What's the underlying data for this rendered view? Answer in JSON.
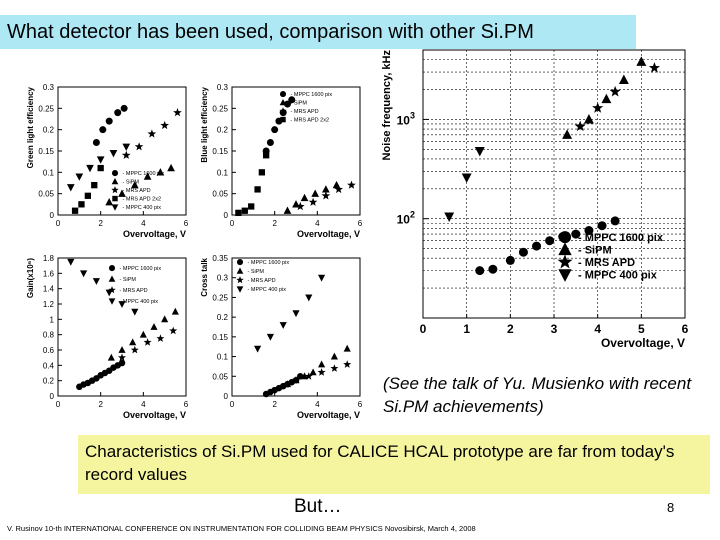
{
  "slide": {
    "title": "What detector has been used, comparison with other Si.PM",
    "caption": "(See the talk of Yu. Musienko with recent Si.PM achievements)",
    "summary": "Characteristics of Si.PM used for CALICE HCAL prototype are far from today's record values",
    "but": "But…",
    "page_number": "8",
    "footer": "V. Rusinov 10-th INTERNATIONAL CONFERENCE ON INSTRUMENTATION FOR COLLIDING BEAM PHYSICS Novosibirsk, March 4, 2008"
  },
  "chart_data": [
    {
      "id": "green",
      "type": "scatter",
      "ylabel": "Green light efficiency",
      "xlabel": "Overvoltage, V",
      "xlim": [
        0,
        6
      ],
      "ylim": [
        0,
        0.3
      ],
      "xticks": [
        "0",
        "2",
        "4",
        "6"
      ],
      "yticks": [
        "0",
        "0.05",
        "0.1",
        "0.15",
        "0.2",
        "0.25",
        "0.3"
      ],
      "legend": [
        "- MPPC 1600 pix",
        "- SiPM",
        "- MRS APD",
        "- MRS APD 2x2",
        "- MPPC 400 pix"
      ],
      "series": [
        {
          "name": "- MPPC 1600 pix",
          "marker": "circle",
          "x": [
            1.8,
            2.1,
            2.4,
            2.8,
            3.1
          ],
          "y": [
            0.17,
            0.2,
            0.22,
            0.24,
            0.25
          ]
        },
        {
          "name": "- SiPM",
          "marker": "triangle",
          "x": [
            2.4,
            3.0,
            3.6,
            4.2,
            4.8,
            5.3
          ],
          "y": [
            0.03,
            0.05,
            0.07,
            0.09,
            0.1,
            0.11
          ]
        },
        {
          "name": "- MRS APD",
          "marker": "star",
          "x": [
            3.2,
            3.8,
            4.4,
            5.0,
            5.6
          ],
          "y": [
            0.14,
            0.16,
            0.19,
            0.21,
            0.24
          ]
        },
        {
          "name": "- MRS APD 2x2",
          "marker": "square",
          "x": [
            0.8,
            1.1,
            1.4,
            1.7,
            2.0
          ],
          "y": [
            0.01,
            0.025,
            0.045,
            0.07,
            0.11
          ]
        },
        {
          "name": "- MPPC 400 pix",
          "marker": "triangle-down",
          "x": [
            0.6,
            1.0,
            1.5,
            2.0,
            2.6,
            3.2
          ],
          "y": [
            0.065,
            0.09,
            0.11,
            0.13,
            0.145,
            0.16
          ]
        }
      ]
    },
    {
      "id": "blue",
      "type": "scatter",
      "ylabel": "Blue light efficiency",
      "xlabel": "Overvoltage, V",
      "xlim": [
        0,
        6
      ],
      "ylim": [
        0,
        0.3
      ],
      "xticks": [
        "0",
        "2",
        "4",
        "6"
      ],
      "yticks": [
        "0",
        "0.05",
        "0.1",
        "0.15",
        "0.2",
        "0.25",
        "0.3"
      ],
      "legend": [
        "- MPPC 1600 pix",
        "- SiPM",
        "- MRS APD",
        "- MRS APD 2x2"
      ],
      "series": [
        {
          "name": "- MPPC 1600 pix",
          "marker": "circle",
          "x": [
            1.6,
            1.8,
            2.0,
            2.2,
            2.4,
            2.6,
            2.8
          ],
          "y": [
            0.15,
            0.17,
            0.2,
            0.22,
            0.24,
            0.26,
            0.27
          ]
        },
        {
          "name": "- SiPM",
          "marker": "triangle",
          "x": [
            2.6,
            3.0,
            3.4,
            3.9,
            4.4,
            4.9
          ],
          "y": [
            0.01,
            0.025,
            0.04,
            0.05,
            0.06,
            0.07
          ]
        },
        {
          "name": "- MRS APD",
          "marker": "star",
          "x": [
            3.2,
            3.8,
            4.4,
            5.0,
            5.6
          ],
          "y": [
            0.02,
            0.03,
            0.045,
            0.06,
            0.07
          ]
        },
        {
          "name": "- MRS APD 2x2",
          "marker": "square",
          "x": [
            0.3,
            0.6,
            0.9,
            1.2,
            1.4,
            1.6
          ],
          "y": [
            0.005,
            0.01,
            0.02,
            0.06,
            0.1,
            0.14
          ]
        }
      ]
    },
    {
      "id": "gain",
      "type": "scatter",
      "ylabel": "Gain(x10⁶)",
      "xlabel": "Overvoltage, V",
      "xlim": [
        0,
        6
      ],
      "ylim": [
        0,
        1.8
      ],
      "xticks": [
        "0",
        "2",
        "4",
        "6"
      ],
      "yticks": [
        "0",
        "0.2",
        "0.4",
        "0.6",
        "0.8",
        "1",
        "1.2",
        "1.4",
        "1.6",
        "1.8"
      ],
      "legend": [
        "- MPPC 1600 pix",
        "- SiPM",
        "- MRS APD",
        "- MPPC 400 pix"
      ],
      "series": [
        {
          "name": "- MPPC 1600 pix",
          "marker": "circle",
          "x": [
            1.0,
            1.2,
            1.4,
            1.6,
            1.8,
            2.0,
            2.2,
            2.4,
            2.6,
            2.8,
            3.0
          ],
          "y": [
            0.12,
            0.15,
            0.17,
            0.2,
            0.23,
            0.27,
            0.3,
            0.33,
            0.37,
            0.4,
            0.43
          ]
        },
        {
          "name": "- SiPM",
          "marker": "triangle",
          "x": [
            2.5,
            3.0,
            3.5,
            4.0,
            4.5,
            5.0,
            5.5
          ],
          "y": [
            0.5,
            0.6,
            0.7,
            0.8,
            0.9,
            1.0,
            1.1
          ]
        },
        {
          "name": "- MRS APD",
          "marker": "star",
          "x": [
            3.0,
            3.6,
            4.2,
            4.8,
            5.4
          ],
          "y": [
            0.5,
            0.6,
            0.7,
            0.75,
            0.85
          ]
        },
        {
          "name": "- MPPC 400 pix",
          "marker": "triangle-down",
          "x": [
            0.6,
            1.2,
            1.8,
            2.4,
            3.0,
            3.6
          ],
          "y": [
            1.75,
            1.6,
            1.5,
            1.35,
            1.2,
            1.1
          ]
        }
      ]
    },
    {
      "id": "crosstalk",
      "type": "scatter",
      "ylabel": "Cross talk",
      "xlabel": "Overvoltage, V",
      "xlim": [
        0,
        6
      ],
      "ylim": [
        0,
        0.35
      ],
      "xticks": [
        "0",
        "2",
        "4",
        "6"
      ],
      "yticks": [
        "0",
        "0.05",
        "0.1",
        "0.15",
        "0.2",
        "0.25",
        "0.3",
        "0.35"
      ],
      "legend": [
        "- MPPC 1600 pix",
        "- SiPM",
        "- MRS APD",
        "- MPPC 400 pix"
      ],
      "series": [
        {
          "name": "- MPPC 1600 pix",
          "marker": "circle",
          "x": [
            1.6,
            1.8,
            2.0,
            2.2,
            2.4,
            2.6,
            2.8,
            3.0,
            3.2
          ],
          "y": [
            0.005,
            0.01,
            0.015,
            0.02,
            0.025,
            0.03,
            0.035,
            0.04,
            0.05
          ]
        },
        {
          "name": "- SiPM",
          "marker": "triangle",
          "x": [
            2.6,
            3.0,
            3.4,
            3.8,
            4.2,
            4.8,
            5.4
          ],
          "y": [
            0.03,
            0.04,
            0.05,
            0.06,
            0.08,
            0.1,
            0.12
          ]
        },
        {
          "name": "- MRS APD",
          "marker": "star",
          "x": [
            3.0,
            3.6,
            4.2,
            4.8,
            5.4
          ],
          "y": [
            0.04,
            0.05,
            0.06,
            0.07,
            0.08
          ]
        },
        {
          "name": "- MPPC 400 pix",
          "marker": "triangle-down",
          "x": [
            1.2,
            1.8,
            2.4,
            3.0,
            3.6,
            4.2
          ],
          "y": [
            0.12,
            0.15,
            0.18,
            0.21,
            0.25,
            0.3
          ]
        }
      ]
    },
    {
      "id": "noise",
      "type": "scatter",
      "ylabel": "Noise frequency, kHz",
      "xlabel": "Overvoltage, V",
      "xlim": [
        0,
        6
      ],
      "ylim": [
        10,
        5000
      ],
      "yscale": "log",
      "grid": true,
      "xticks": [
        "0",
        "1",
        "2",
        "3",
        "4",
        "5",
        "6"
      ],
      "yticks": [
        "10 2",
        "10 3"
      ],
      "legend": [
        "- MPPC 1600 pix",
        "- SiPM",
        "- MRS APD",
        "- MPPC 400 pix"
      ],
      "series": [
        {
          "name": "- MPPC 1600 pix",
          "marker": "circle",
          "x": [
            1.3,
            1.6,
            2.0,
            2.3,
            2.6,
            2.9,
            3.2,
            3.5,
            3.8,
            4.1,
            4.4
          ],
          "y": [
            30,
            31,
            38,
            46,
            53,
            60,
            66,
            70,
            76,
            85,
            95
          ]
        },
        {
          "name": "- SiPM",
          "marker": "triangle",
          "x": [
            3.3,
            3.8,
            4.2,
            4.6,
            5.0
          ],
          "y": [
            700,
            1000,
            1600,
            2500,
            3800
          ]
        },
        {
          "name": "- MRS APD",
          "marker": "star",
          "x": [
            3.6,
            4.0,
            4.4,
            5.3
          ],
          "y": [
            850,
            1300,
            1900,
            3300
          ]
        },
        {
          "name": "- MPPC 400 pix",
          "marker": "triangle-down",
          "x": [
            0.6,
            1.0,
            1.3
          ],
          "y": [
            105,
            260,
            480
          ]
        }
      ]
    }
  ]
}
